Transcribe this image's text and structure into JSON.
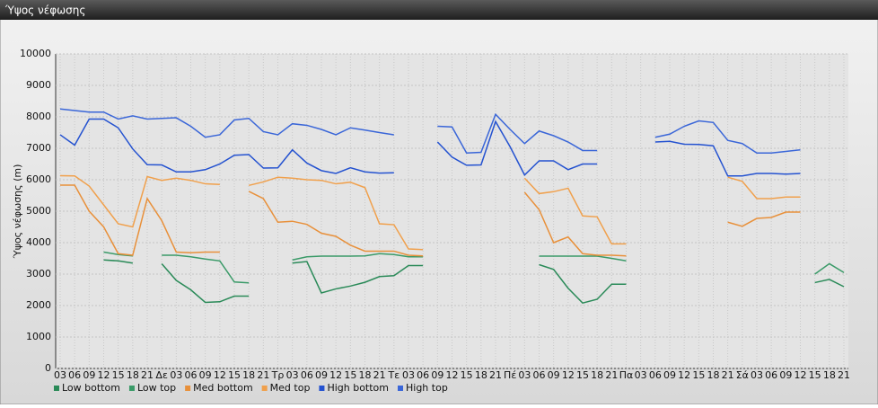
{
  "chart_data": {
    "type": "line",
    "title": "Ύψος νέφωσης",
    "y_label": "Ύψος νέφωσης (m)",
    "categories": [
      "03",
      "06",
      "09",
      "12",
      "15",
      "18",
      "21",
      "Δε",
      "03",
      "06",
      "09",
      "12",
      "15",
      "18",
      "21",
      "Τρ",
      "03",
      "06",
      "09",
      "12",
      "15",
      "18",
      "21",
      "Τε",
      "03",
      "06",
      "09",
      "12",
      "15",
      "18",
      "21",
      "Πέ",
      "03",
      "06",
      "09",
      "12",
      "15",
      "18",
      "21",
      "Πα",
      "03",
      "06",
      "09",
      "12",
      "15",
      "18",
      "21",
      "Σά",
      "03",
      "06",
      "09",
      "12",
      "15",
      "18",
      "21"
    ],
    "ylim": [
      0,
      10000
    ],
    "yticks": [
      0,
      1000,
      2000,
      3000,
      4000,
      5000,
      6000,
      7000,
      8000,
      9000,
      10000
    ],
    "grid": true,
    "series": [
      {
        "name": "Low bottom",
        "color": "#2a8a58",
        "values": [
          null,
          null,
          null,
          3450,
          3420,
          3350,
          null,
          3330,
          2800,
          2500,
          2100,
          2120,
          2300,
          2300,
          null,
          null,
          3350,
          3400,
          2400,
          2530,
          2620,
          2740,
          2920,
          2950,
          3270,
          3270,
          null,
          null,
          null,
          null,
          null,
          null,
          null,
          3300,
          3150,
          2550,
          2080,
          2200,
          2680,
          2680,
          null,
          null,
          null,
          null,
          null,
          null,
          null,
          null,
          null,
          null,
          null,
          null,
          2730,
          2830,
          2600
        ]
      },
      {
        "name": "Low top",
        "color": "#3a9a68",
        "values": [
          null,
          null,
          null,
          3700,
          3620,
          3580,
          null,
          3600,
          3600,
          3550,
          3480,
          3420,
          2750,
          2720,
          null,
          null,
          3450,
          3550,
          3570,
          3570,
          3570,
          3580,
          3650,
          3620,
          3550,
          3550,
          null,
          null,
          null,
          null,
          null,
          null,
          null,
          3570,
          3570,
          3570,
          3570,
          3570,
          3500,
          3420,
          null,
          null,
          null,
          null,
          null,
          null,
          null,
          null,
          null,
          null,
          null,
          null,
          3000,
          3330,
          3050
        ]
      },
      {
        "name": "Med bottom",
        "color": "#e8903a",
        "values": [
          5830,
          5830,
          5000,
          4500,
          3650,
          3600,
          5400,
          4700,
          3700,
          3680,
          3700,
          3700,
          null,
          5630,
          5400,
          4650,
          4680,
          4580,
          4300,
          4200,
          3920,
          3730,
          3730,
          3730,
          3600,
          3580,
          null,
          null,
          null,
          null,
          null,
          null,
          5600,
          5050,
          4000,
          4180,
          3650,
          3600,
          3600,
          3580,
          null,
          null,
          null,
          null,
          null,
          null,
          4650,
          4520,
          4770,
          4800,
          4970,
          4970,
          null,
          null,
          null
        ]
      },
      {
        "name": "Med top",
        "color": "#f0a04c",
        "values": [
          6130,
          6120,
          5800,
          5200,
          4600,
          4500,
          6100,
          5980,
          6050,
          5980,
          5870,
          5850,
          null,
          5820,
          5930,
          6080,
          6050,
          6000,
          5980,
          5870,
          5920,
          5750,
          4600,
          4570,
          3800,
          3780,
          null,
          null,
          null,
          null,
          null,
          null,
          6050,
          5560,
          5620,
          5730,
          4850,
          4820,
          3960,
          3960,
          null,
          null,
          null,
          null,
          null,
          null,
          6080,
          5950,
          5400,
          5400,
          5450,
          5450,
          null,
          null,
          null
        ]
      },
      {
        "name": "High bottom",
        "color": "#2452d0",
        "values": [
          7430,
          7100,
          7930,
          7930,
          7650,
          6980,
          6480,
          6470,
          6250,
          6250,
          6320,
          6500,
          6780,
          6800,
          6370,
          6380,
          6950,
          6530,
          6290,
          6200,
          6380,
          6250,
          6210,
          6220,
          null,
          null,
          7200,
          6720,
          6460,
          6470,
          7850,
          7050,
          6150,
          6600,
          6600,
          6320,
          6500,
          6500,
          null,
          null,
          null,
          7200,
          7220,
          7130,
          7120,
          7080,
          6120,
          6120,
          6200,
          6200,
          6180,
          6200,
          null,
          null,
          null
        ]
      },
      {
        "name": "High top",
        "color": "#3a66d8",
        "values": [
          8250,
          8200,
          8150,
          8150,
          7930,
          8030,
          7930,
          7950,
          7970,
          7700,
          7350,
          7430,
          7900,
          7950,
          7530,
          7430,
          7780,
          7730,
          7600,
          7430,
          7650,
          7580,
          7500,
          7430,
          null,
          null,
          7700,
          7680,
          6850,
          6870,
          8080,
          7600,
          7150,
          7550,
          7400,
          7200,
          6930,
          6930,
          null,
          null,
          null,
          7350,
          7450,
          7700,
          7870,
          7820,
          7250,
          7150,
          6850,
          6850,
          6900,
          6950,
          null,
          null,
          null
        ]
      }
    ]
  }
}
